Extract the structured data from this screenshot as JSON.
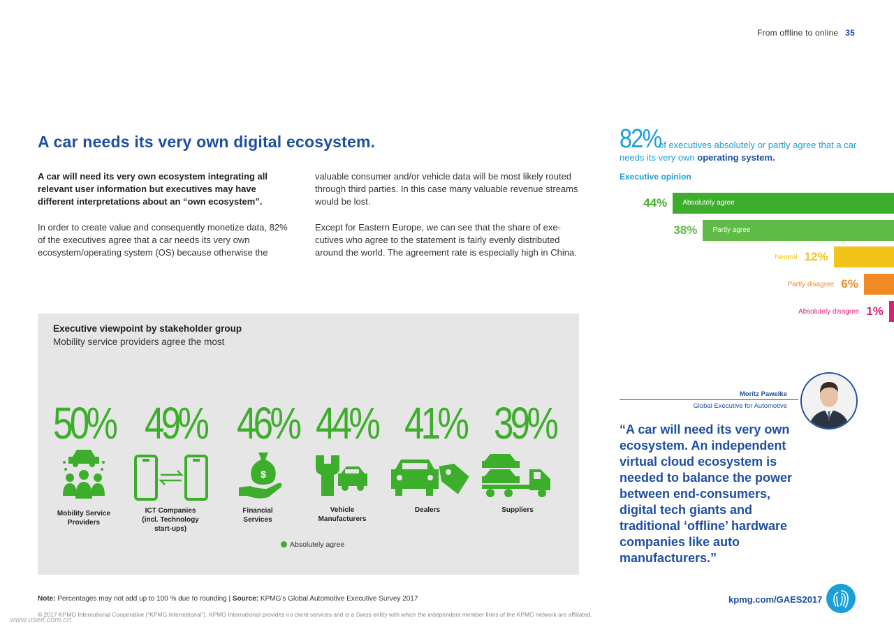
{
  "header": {
    "section": "From offline to online",
    "page_number": "35"
  },
  "title": "A car needs its very own digital ecosystem.",
  "col1": {
    "lead": "A car will need its very own ecosystem integrating all relevant user information but executives may have different interpretations about an “own ecosystem”.",
    "body": "In order to create value and consequently monetize data, 82% of the executives agree that a car needs its very own ecosystem/operating system (OS) because otherwise the"
  },
  "col2": {
    "p1": "valuable consumer and/or vehicle data will be most likely routed through third parties. In this case many valuable revenue streams would be lost.",
    "p2": "Except for Eastern Europe, we can see that the share of exe­cutives who agree to the statement is fairly evenly distributed around the world. The agreement rate is especially high in China."
  },
  "panel": {
    "title": "Executive viewpoint by stakeholder group",
    "subtitle": "Mobility service providers agree the most",
    "legend": "Absolutely agree",
    "colors": {
      "green": "#3dae2b"
    },
    "groups": [
      {
        "pct": "50%",
        "value": 50,
        "label": "Mobility Service Providers",
        "icon": "people-car-icon"
      },
      {
        "pct": "49%",
        "value": 49,
        "label": "ICT Companies (incl. Technology start-ups)",
        "icon": "phones-exchange-icon"
      },
      {
        "pct": "46%",
        "value": 46,
        "label": "Financial Services",
        "icon": "money-bag-hand-icon"
      },
      {
        "pct": "44%",
        "value": 44,
        "label": "Vehicle Manufacturers",
        "icon": "wrench-car-icon"
      },
      {
        "pct": "41%",
        "value": 41,
        "label": "Dealers",
        "icon": "car-price-tag-icon"
      },
      {
        "pct": "39%",
        "value": 39,
        "label": "Suppliers",
        "icon": "car-transporter-icon"
      }
    ]
  },
  "note": {
    "label": "Note:",
    "text": "Percentages may not add up to 100 % due to rounding |",
    "source_label": "Source:",
    "source": "KPMG’s Global Automotive Executive Survey 2017"
  },
  "copyright": "© 2017 KPMG International Cooperative (“KPMG International”). KPMG International provides no client services and is a Swiss entity with which the independent member firms of the KPMG network are affiliated.",
  "watermark": "www.useit.com.cn",
  "sidebar": {
    "stat_number": "82%",
    "stat_text": "of executives absolutely or partly agree that a car needs its very own",
    "stat_emph": "operating system.",
    "chart_label": "Executive opinion",
    "speaker_name": "Moritz Pawelke",
    "speaker_role": "Global Executive for Automotive",
    "quote": "“A car will need its very own ecosystem. An independent virtual cloud ecosystem is needed to balance the power between end-con­sumers, digital tech giants and traditional ‘offline’ hard­ware companies like auto manufacturers.”",
    "link": "kpmg.com/GAES2017"
  },
  "chart_data": {
    "type": "bar",
    "orientation": "horizontal",
    "title": "Executive opinion",
    "categories": [
      "Absolutely agree",
      "Partly agree",
      "Neutral",
      "Partly disagree",
      "Absolutely disagree"
    ],
    "values": [
      44,
      38,
      12,
      6,
      1
    ],
    "labels": [
      "44%",
      "38%",
      "12%",
      "6%",
      "1%"
    ],
    "colors": [
      "#3dae2b",
      "#5dbb46",
      "#f2c419",
      "#f08a24",
      "#d6237a"
    ]
  }
}
